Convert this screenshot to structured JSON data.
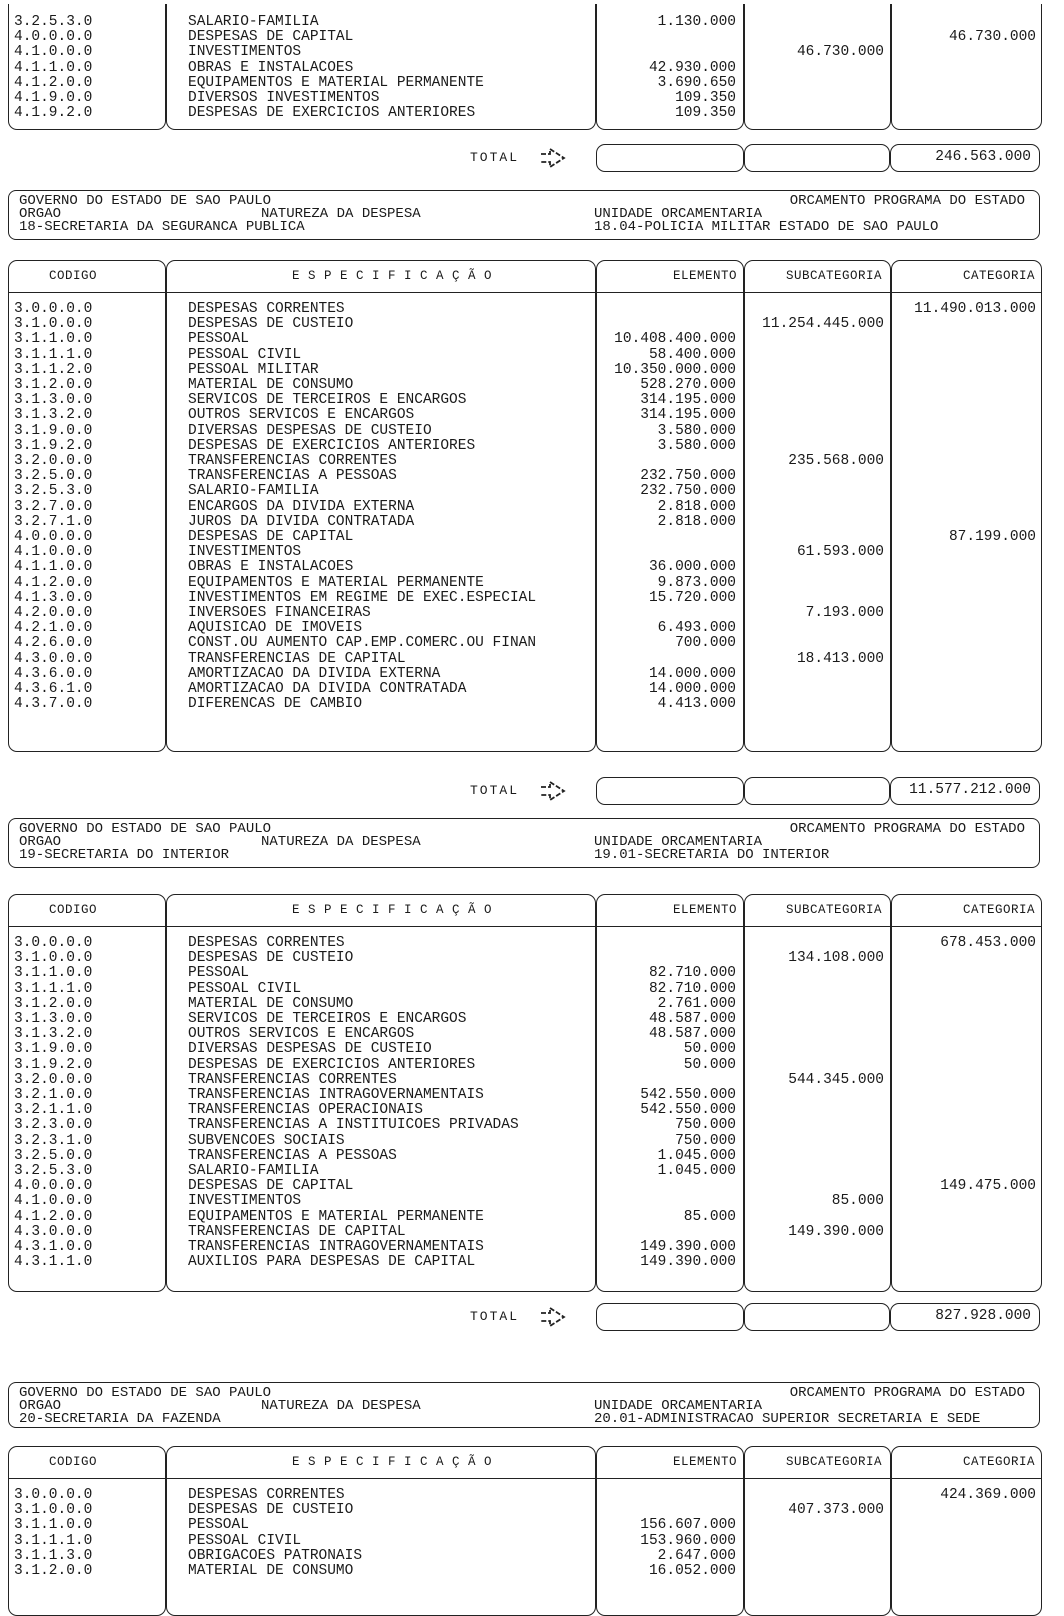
{
  "header_common": {
    "gov": "GOVERNO DO ESTADO DE SAO PAULO",
    "orcamento": "ORCAMENTO PROGRAMA DO ESTADO",
    "orgao_label": "ORGAO",
    "natureza": "NATUREZA DA DESPESA",
    "unidade_label": "UNIDADE ORCAMENTARIA"
  },
  "columns": {
    "codigo": "CODIGO",
    "especificacao": "E S P E C I F I C A Ç Ã O",
    "elemento": "ELEMENTO",
    "subcategoria": "SUBCATEGORIA",
    "categoria": "CATEGORIA"
  },
  "total_label": "TOTAL",
  "sections": [
    {
      "rows": [
        [
          "3.2.5.3.0",
          "SALARIO-FAMILIA",
          "1.130.000",
          "",
          ""
        ],
        [
          "4.0.0.0.0",
          "DESPESAS DE CAPITAL",
          "",
          "",
          "46.730.000"
        ],
        [
          "4.1.0.0.0",
          "INVESTIMENTOS",
          "",
          "46.730.000",
          ""
        ],
        [
          "4.1.1.0.0",
          "OBRAS E INSTALACOES",
          "42.930.000",
          "",
          ""
        ],
        [
          "4.1.2.0.0",
          "EQUIPAMENTOS E MATERIAL PERMANENTE",
          "3.690.650",
          "",
          ""
        ],
        [
          "4.1.9.0.0",
          "DIVERSOS INVESTIMENTOS",
          "109.350",
          "",
          ""
        ],
        [
          "4.1.9.2.0",
          "DESPESAS DE EXERCICIOS ANTERIORES",
          "109.350",
          "",
          ""
        ]
      ],
      "total": "246.563.000"
    },
    {
      "orgao": "18-SECRETARIA DA SEGURANCA PUBLICA",
      "unidade": "18.04-POLICIA MILITAR ESTADO DE SAO PAULO",
      "rows": [
        [
          "3.0.0.0.0",
          "DESPESAS CORRENTES",
          "",
          "",
          "11.490.013.000"
        ],
        [
          "3.1.0.0.0",
          "DESPESAS DE CUSTEIO",
          "",
          "11.254.445.000",
          ""
        ],
        [
          "3.1.1.0.0",
          "PESSOAL",
          "10.408.400.000",
          "",
          ""
        ],
        [
          "3.1.1.1.0",
          "PESSOAL CIVIL",
          "58.400.000",
          "",
          ""
        ],
        [
          "3.1.1.2.0",
          "PESSOAL MILITAR",
          "10.350.000.000",
          "",
          ""
        ],
        [
          "3.1.2.0.0",
          "MATERIAL DE CONSUMO",
          "528.270.000",
          "",
          ""
        ],
        [
          "3.1.3.0.0",
          "SERVICOS DE TERCEIROS E ENCARGOS",
          "314.195.000",
          "",
          ""
        ],
        [
          "3.1.3.2.0",
          "OUTROS SERVICOS E ENCARGOS",
          "314.195.000",
          "",
          ""
        ],
        [
          "3.1.9.0.0",
          "DIVERSAS DESPESAS DE CUSTEIO",
          "3.580.000",
          "",
          ""
        ],
        [
          "3.1.9.2.0",
          "DESPESAS DE EXERCICIOS ANTERIORES",
          "3.580.000",
          "",
          ""
        ],
        [
          "3.2.0.0.0",
          "TRANSFERENCIAS CORRENTES",
          "",
          "235.568.000",
          ""
        ],
        [
          "3.2.5.0.0",
          "TRANSFERENCIAS A PESSOAS",
          "232.750.000",
          "",
          ""
        ],
        [
          "3.2.5.3.0",
          "SALARIO-FAMILIA",
          "232.750.000",
          "",
          ""
        ],
        [
          "3.2.7.0.0",
          "ENCARGOS DA DIVIDA EXTERNA",
          "2.818.000",
          "",
          ""
        ],
        [
          "3.2.7.1.0",
          "JUROS DA DIVIDA CONTRATADA",
          "2.818.000",
          "",
          ""
        ],
        [
          "4.0.0.0.0",
          "DESPESAS DE CAPITAL",
          "",
          "",
          "87.199.000"
        ],
        [
          "4.1.0.0.0",
          "INVESTIMENTOS",
          "",
          "61.593.000",
          ""
        ],
        [
          "4.1.1.0.0",
          "OBRAS E INSTALACOES",
          "36.000.000",
          "",
          ""
        ],
        [
          "4.1.2.0.0",
          "EQUIPAMENTOS E MATERIAL PERMANENTE",
          "9.873.000",
          "",
          ""
        ],
        [
          "4.1.3.0.0",
          "INVESTIMENTOS EM REGIME DE EXEC.ESPECIAL",
          "15.720.000",
          "",
          ""
        ],
        [
          "4.2.0.0.0",
          "INVERSOES FINANCEIRAS",
          "",
          "7.193.000",
          ""
        ],
        [
          "4.2.1.0.0",
          "AQUISICAO DE IMOVEIS",
          "6.493.000",
          "",
          ""
        ],
        [
          "4.2.6.0.0",
          "CONST.OU AUMENTO CAP.EMP.COMERC.OU FINAN",
          "700.000",
          "",
          ""
        ],
        [
          "4.3.0.0.0",
          "TRANSFERENCIAS DE CAPITAL",
          "",
          "18.413.000",
          ""
        ],
        [
          "4.3.6.0.0",
          "AMORTIZACAO DA DIVIDA EXTERNA",
          "14.000.000",
          "",
          ""
        ],
        [
          "4.3.6.1.0",
          "AMORTIZACAO DA DIVIDA CONTRATADA",
          "14.000.000",
          "",
          ""
        ],
        [
          "4.3.7.0.0",
          "DIFERENCAS DE CAMBIO",
          "4.413.000",
          "",
          ""
        ]
      ],
      "total": "11.577.212.000"
    },
    {
      "orgao": "19-SECRETARIA DO INTERIOR",
      "unidade": "19.01-SECRETARIA DO INTERIOR",
      "rows": [
        [
          "3.0.0.0.0",
          "DESPESAS CORRENTES",
          "",
          "",
          "678.453.000"
        ],
        [
          "3.1.0.0.0",
          "DESPESAS DE CUSTEIO",
          "",
          "134.108.000",
          ""
        ],
        [
          "3.1.1.0.0",
          "PESSOAL",
          "82.710.000",
          "",
          ""
        ],
        [
          "3.1.1.1.0",
          "PESSOAL CIVIL",
          "82.710.000",
          "",
          ""
        ],
        [
          "3.1.2.0.0",
          "MATERIAL DE CONSUMO",
          "2.761.000",
          "",
          ""
        ],
        [
          "3.1.3.0.0",
          "SERVICOS DE TERCEIROS E ENCARGOS",
          "48.587.000",
          "",
          ""
        ],
        [
          "3.1.3.2.0",
          "OUTROS SERVICOS E ENCARGOS",
          "48.587.000",
          "",
          ""
        ],
        [
          "3.1.9.0.0",
          "DIVERSAS DESPESAS DE CUSTEIO",
          "50.000",
          "",
          ""
        ],
        [
          "3.1.9.2.0",
          "DESPESAS DE EXERCICIOS ANTERIORES",
          "50.000",
          "",
          ""
        ],
        [
          "3.2.0.0.0",
          "TRANSFERENCIAS CORRENTES",
          "",
          "544.345.000",
          ""
        ],
        [
          "3.2.1.0.0",
          "TRANSFERENCIAS INTRAGOVERNAMENTAIS",
          "542.550.000",
          "",
          ""
        ],
        [
          "3.2.1.1.0",
          "TRANSFERENCIAS OPERACIONAIS",
          "542.550.000",
          "",
          ""
        ],
        [
          "3.2.3.0.0",
          "TRANSFERENCIAS A INSTITUICOES PRIVADAS",
          "750.000",
          "",
          ""
        ],
        [
          "3.2.3.1.0",
          "SUBVENCOES SOCIAIS",
          "750.000",
          "",
          ""
        ],
        [
          "3.2.5.0.0",
          "TRANSFERENCIAS A PESSOAS",
          "1.045.000",
          "",
          ""
        ],
        [
          "3.2.5.3.0",
          "SALARIO-FAMILIA",
          "1.045.000",
          "",
          ""
        ],
        [
          "4.0.0.0.0",
          "DESPESAS DE CAPITAL",
          "",
          "",
          "149.475.000"
        ],
        [
          "4.1.0.0.0",
          "INVESTIMENTOS",
          "",
          "85.000",
          ""
        ],
        [
          "4.1.2.0.0",
          "EQUIPAMENTOS E MATERIAL PERMANENTE",
          "85.000",
          "",
          ""
        ],
        [
          "4.3.0.0.0",
          "TRANSFERENCIAS DE CAPITAL",
          "",
          "149.390.000",
          ""
        ],
        [
          "4.3.1.0.0",
          "TRANSFERENCIAS INTRAGOVERNAMENTAIS",
          "149.390.000",
          "",
          ""
        ],
        [
          "4.3.1.1.0",
          "AUXILIOS PARA DESPESAS DE CAPITAL",
          "149.390.000",
          "",
          ""
        ]
      ],
      "total": "827.928.000"
    },
    {
      "orgao": "20-SECRETARIA DA FAZENDA",
      "unidade": "20.01-ADMINISTRACAO SUPERIOR SECRETARIA E SEDE",
      "rows": [
        [
          "3.0.0.0.0",
          "DESPESAS CORRENTES",
          "",
          "",
          "424.369.000"
        ],
        [
          "3.1.0.0.0",
          "DESPESAS DE CUSTEIO",
          "",
          "407.373.000",
          ""
        ],
        [
          "3.1.1.0.0",
          "PESSOAL",
          "156.607.000",
          "",
          ""
        ],
        [
          "3.1.1.1.0",
          "PESSOAL CIVIL",
          "153.960.000",
          "",
          ""
        ],
        [
          "3.1.1.3.0",
          "OBRIGACOES PATRONAIS",
          "2.647.000",
          "",
          ""
        ],
        [
          "3.1.2.0.0",
          "MATERIAL DE CONSUMO",
          "16.052.000",
          "",
          ""
        ]
      ]
    }
  ]
}
